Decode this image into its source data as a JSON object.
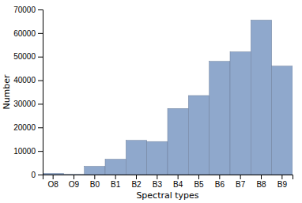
{
  "chart_data": {
    "type": "bar",
    "categories": [
      "O8",
      "O9",
      "B0",
      "B1",
      "B2",
      "B3",
      "B4",
      "B5",
      "B6",
      "B7",
      "B8",
      "B9"
    ],
    "values": [
      500,
      80,
      3500,
      6500,
      14500,
      14000,
      28000,
      33500,
      48000,
      52000,
      65500,
      46000
    ],
    "color": "#8fa8cc",
    "xlabel": "Spectral types",
    "ylabel": "Number",
    "ylim": [
      0,
      70000
    ],
    "yticks": [
      0,
      10000,
      20000,
      30000,
      40000,
      50000,
      60000,
      70000
    ],
    "grid": false
  }
}
